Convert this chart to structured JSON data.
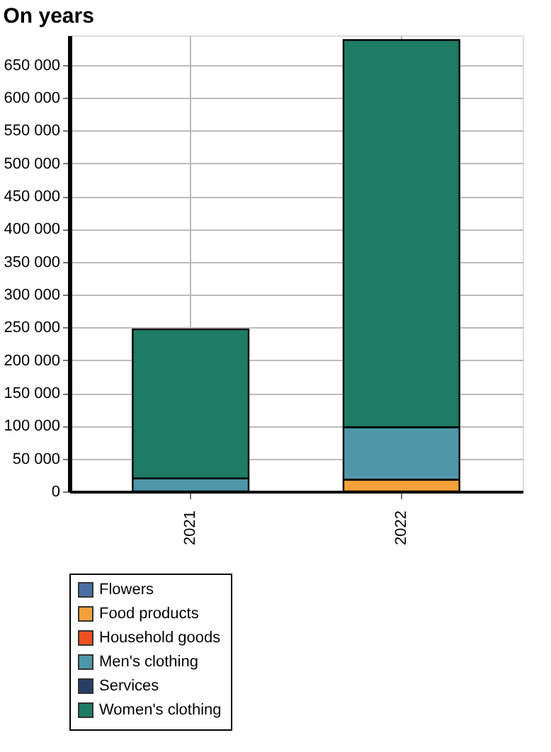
{
  "chart_data": {
    "type": "bar",
    "title": "On years",
    "stacked": true,
    "categories": [
      "2021",
      "2022"
    ],
    "series": [
      {
        "name": "Flowers",
        "color": "#4a6fa5",
        "values": [
          0,
          0
        ]
      },
      {
        "name": "Food products",
        "color": "#f4a03a",
        "values": [
          0,
          18000
        ]
      },
      {
        "name": "Household goods",
        "color": "#f05020",
        "values": [
          0,
          0
        ]
      },
      {
        "name": "Men's clothing",
        "color": "#4e97a8",
        "values": [
          20000,
          80000
        ]
      },
      {
        "name": "Services",
        "color": "#283c64",
        "values": [
          0,
          0
        ]
      },
      {
        "name": "Women's clothing",
        "color": "#1e7b64",
        "values": [
          227000,
          590000
        ]
      }
    ],
    "ylim": [
      0,
      695000
    ],
    "yticks": [
      {
        "value": 0,
        "label": "0"
      },
      {
        "value": 50000,
        "label": "50 000"
      },
      {
        "value": 100000,
        "label": "100 000"
      },
      {
        "value": 150000,
        "label": "150 000"
      },
      {
        "value": 200000,
        "label": "200 000"
      },
      {
        "value": 250000,
        "label": "250 000"
      },
      {
        "value": 300000,
        "label": "300 000"
      },
      {
        "value": 350000,
        "label": "350 000"
      },
      {
        "value": 400000,
        "label": "400 000"
      },
      {
        "value": 450000,
        "label": "450 000"
      },
      {
        "value": 500000,
        "label": "500 000"
      },
      {
        "value": 550000,
        "label": "550 000"
      },
      {
        "value": 600000,
        "label": "600 000"
      },
      {
        "value": 650000,
        "label": "650 000"
      }
    ],
    "grid": true,
    "legend": "bottom left"
  }
}
